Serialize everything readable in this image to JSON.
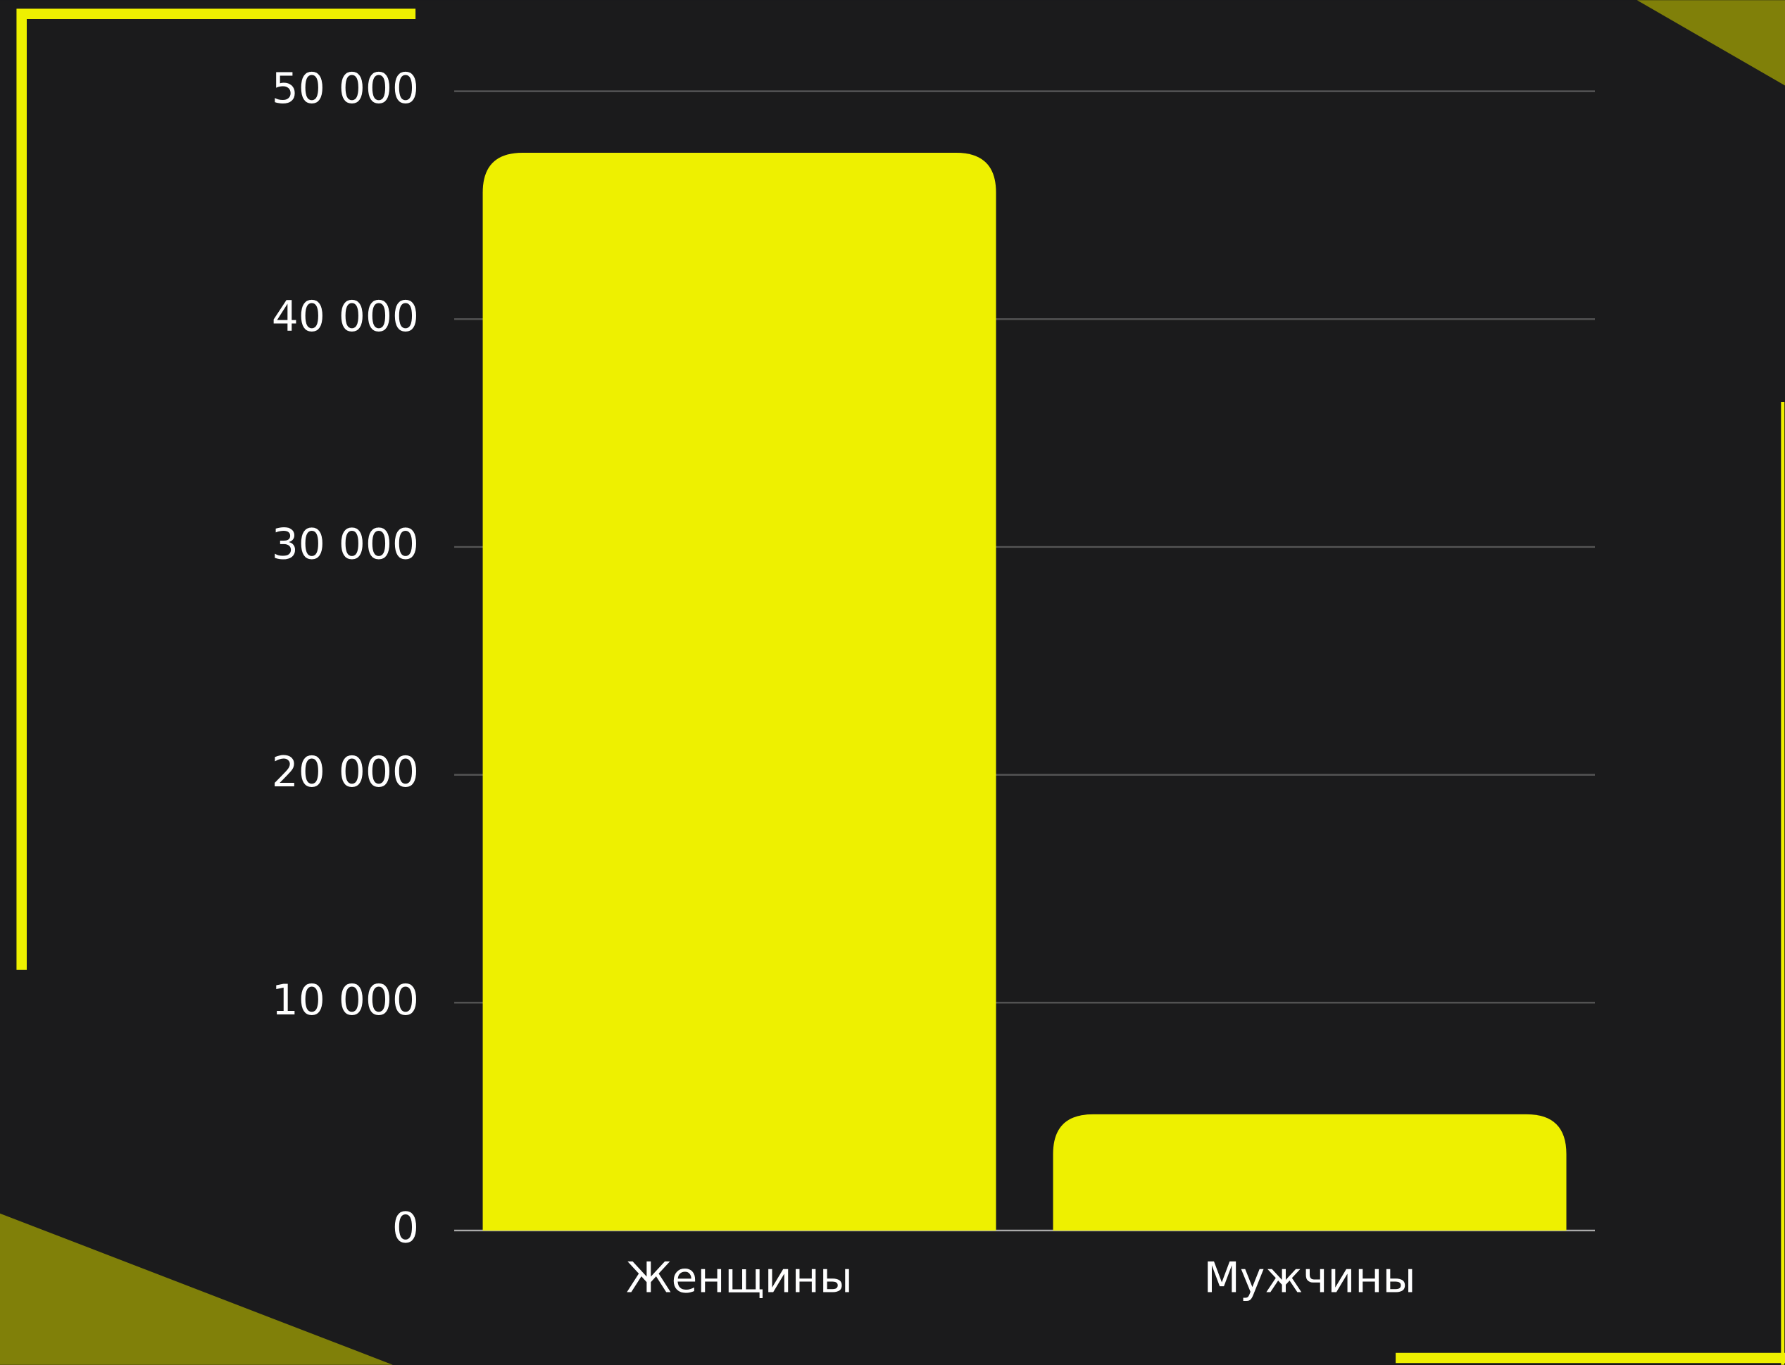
{
  "chart_data": {
    "type": "bar",
    "categories": [
      "Женщины",
      "Мужчины"
    ],
    "values": [
      47300,
      5100
    ],
    "color": "#eef000",
    "ylim": [
      0,
      50000
    ],
    "yticks": [
      0,
      {
        "value": 10000,
        "label": "10 000"
      },
      {
        "value": 20000,
        "label": "20 000"
      },
      {
        "value": 30000,
        "label": "30 000"
      },
      {
        "value": 40000,
        "label": "40 000"
      },
      {
        "value": 50000,
        "label": "50 000"
      }
    ],
    "grid": true
  }
}
